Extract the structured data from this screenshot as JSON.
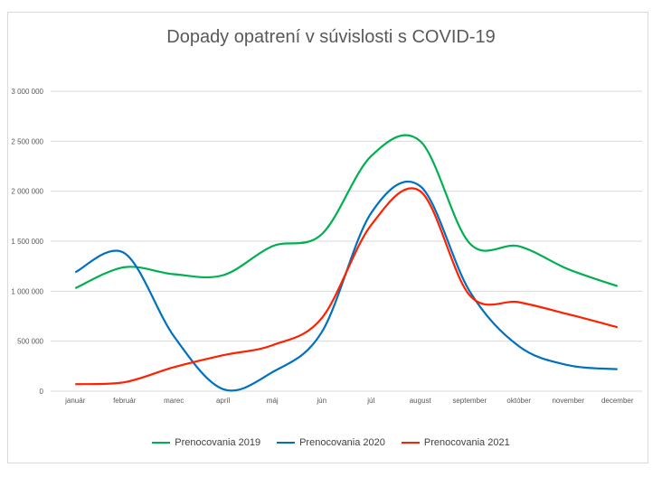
{
  "chart_data": {
    "type": "line",
    "title": "Dopady opatrení v súvislosti s COVID-19",
    "categories": [
      "január",
      "február",
      "marec",
      "apríl",
      "máj",
      "jún",
      "júl",
      "august",
      "september",
      "október",
      "november",
      "december"
    ],
    "yticks": [
      "0",
      "500 000",
      "1 000 000",
      "1 500 000",
      "2 000 000",
      "2 500 000",
      "3 000 000"
    ],
    "ylim": [
      0,
      3000000
    ],
    "grid": true,
    "legend_position": "bottom",
    "series": [
      {
        "name": "Prenocovania 2019",
        "color": "#00b050",
        "values": [
          1030000,
          1240000,
          1170000,
          1160000,
          1450000,
          1570000,
          2350000,
          2500000,
          1480000,
          1450000,
          1220000,
          1050000
        ]
      },
      {
        "name": "Prenocovania 2020",
        "color": "#0070c0",
        "values": [
          1190000,
          1380000,
          550000,
          20000,
          190000,
          590000,
          1780000,
          2050000,
          1000000,
          450000,
          260000,
          220000
        ]
      },
      {
        "name": "Prenocovania 2021",
        "color": "#ff2000",
        "values": [
          70000,
          90000,
          240000,
          360000,
          460000,
          730000,
          1660000,
          2000000,
          960000,
          890000,
          770000,
          640000
        ]
      }
    ]
  }
}
